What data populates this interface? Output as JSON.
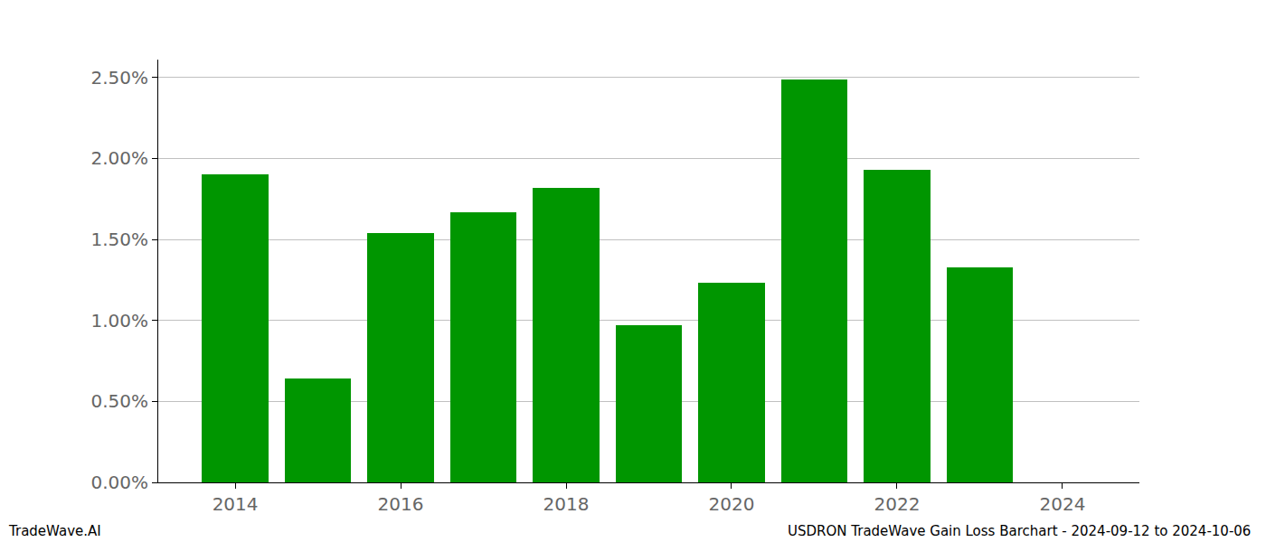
{
  "chart_data": {
    "type": "bar",
    "x": [
      2014,
      2015,
      2016,
      2017,
      2018,
      2019,
      2020,
      2021,
      2022,
      2023
    ],
    "values": [
      1.9,
      0.64,
      1.54,
      1.67,
      1.82,
      0.97,
      1.23,
      2.49,
      1.93,
      1.33
    ],
    "color": "#009600",
    "xlim": [
      2013.07,
      2024.93
    ],
    "xticks": [
      2014,
      2016,
      2018,
      2020,
      2022,
      2024
    ],
    "ylim": [
      0,
      2.61
    ],
    "yticks": [
      {
        "value": 0,
        "label": "0.00%"
      },
      {
        "value": 0.5,
        "label": "0.50%"
      },
      {
        "value": 1.0,
        "label": "1.00%"
      },
      {
        "value": 1.5,
        "label": "1.50%"
      },
      {
        "value": 2.0,
        "label": "2.00%"
      },
      {
        "value": 2.5,
        "label": "2.50%"
      }
    ],
    "grid": "y",
    "annotations": [
      "TradeWave.AI",
      "USDRON TradeWave Gain Loss Barchart - 2024-09-12 to 2024-10-06"
    ]
  }
}
